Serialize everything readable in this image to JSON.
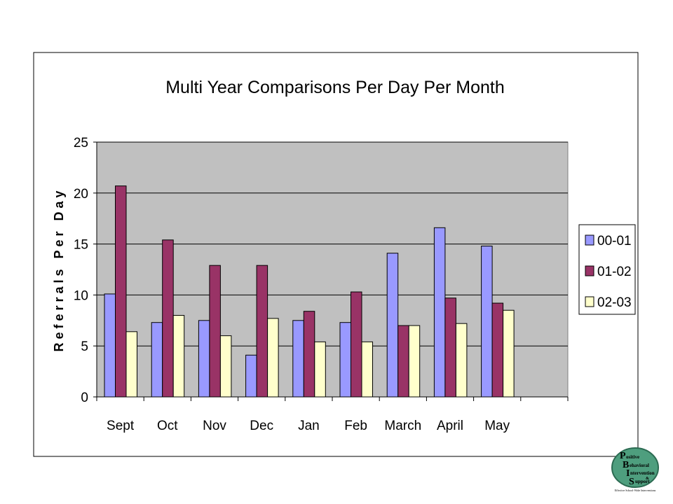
{
  "chart_data": {
    "type": "bar",
    "title": "Multi Year Comparisons Per Day Per Month",
    "ylabel": "Referrals Per Day",
    "xlabel": "",
    "categories": [
      "Sept",
      "Oct",
      "Nov",
      "Dec",
      "Jan",
      "Feb",
      "March",
      "April",
      "May",
      ""
    ],
    "ylim": [
      0,
      25
    ],
    "yticks": [
      0,
      5,
      10,
      15,
      20,
      25
    ],
    "grid": true,
    "legend_position": "right",
    "series": [
      {
        "name": "00-01",
        "color": "#9999FF",
        "values": [
          10.1,
          7.3,
          7.5,
          4.1,
          7.5,
          7.3,
          14.1,
          16.6,
          14.8,
          null
        ]
      },
      {
        "name": "01-02",
        "color": "#993366",
        "values": [
          20.7,
          15.4,
          12.9,
          12.9,
          8.4,
          10.3,
          7.0,
          9.7,
          9.2,
          null
        ]
      },
      {
        "name": "02-03",
        "color": "#FFFFCC",
        "values": [
          6.4,
          8.0,
          6.0,
          7.7,
          5.4,
          5.4,
          7.0,
          7.2,
          8.5,
          null
        ]
      }
    ],
    "plot_background": "#C0C0C0"
  },
  "logo": {
    "letters": [
      "P",
      "B",
      "I",
      "S"
    ],
    "words": [
      "ositive",
      "ehavioral",
      "ntervention",
      "&",
      "upport"
    ],
    "tagline": "Effective School-Wide Interventions",
    "color": "#3A8A6A"
  }
}
